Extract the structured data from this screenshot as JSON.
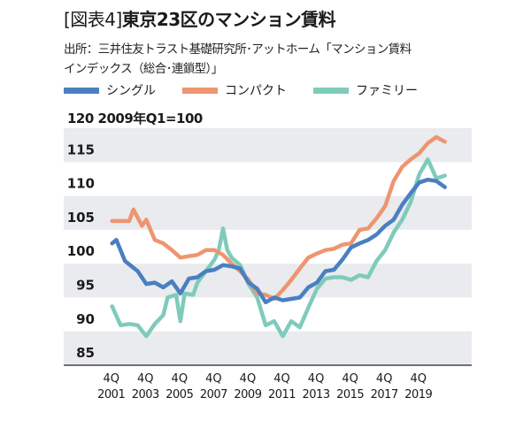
{
  "chart_data": {
    "type": "line",
    "title_prefix": "[図表4]",
    "title": "東京23区のマンション賃料",
    "source_line1": "出所：三井住友トラスト基礎研究所･アットホーム「マンション賃料",
    "source_line2": "インデックス（総合･連鎖型）」",
    "unit_label": "120 2009年Q1=100",
    "ylim": [
      83.7,
      118.7
    ],
    "yticks": [
      "85",
      "90",
      "95",
      "100",
      "105",
      "110",
      "115"
    ],
    "ytick_values": [
      85,
      90,
      95,
      100,
      105,
      110,
      115
    ],
    "bands": [
      [
        83.7,
        88.7
      ],
      [
        93.7,
        98.7
      ],
      [
        103.7,
        108.7
      ],
      [
        113.7,
        118.7
      ]
    ],
    "band_color": "#e9ebee",
    "xticks": [
      {
        "q": "4Q",
        "y": "2001"
      },
      {
        "q": "4Q",
        "y": "2003"
      },
      {
        "q": "4Q",
        "y": "2005"
      },
      {
        "q": "4Q",
        "y": "2007"
      },
      {
        "q": "4Q",
        "y": "2009"
      },
      {
        "q": "4Q",
        "y": "2011"
      },
      {
        "q": "4Q",
        "y": "2013"
      },
      {
        "q": "4Q",
        "y": "2015"
      },
      {
        "q": "4Q",
        "y": "2017"
      },
      {
        "q": "4Q",
        "y": "2019"
      }
    ],
    "xtick_positions": [
      "2001Q4",
      "2003Q4",
      "2005Q4",
      "2007Q4",
      "2009Q4",
      "2011Q4",
      "2013Q4",
      "2015Q4",
      "2017Q4",
      "2019Q4"
    ],
    "xlim": [
      "2001Q4",
      "2021Q2"
    ],
    "legend_placement": "top",
    "series": [
      {
        "name": "シングル",
        "color": "#4a7fc1",
        "points": [
          [
            "2001Q4",
            101.7
          ],
          [
            "2002Q1",
            102.2
          ],
          [
            "2002Q3",
            99.1
          ],
          [
            "2003Q2",
            97.6
          ],
          [
            "2003Q4",
            95.7
          ],
          [
            "2004Q2",
            95.9
          ],
          [
            "2004Q4",
            95.2
          ],
          [
            "2005Q2",
            96.1
          ],
          [
            "2005Q4",
            94.3
          ],
          [
            "2006Q2",
            96.5
          ],
          [
            "2006Q4",
            96.7
          ],
          [
            "2007Q2",
            97.6
          ],
          [
            "2007Q4",
            97.8
          ],
          [
            "2008Q2",
            98.5
          ],
          [
            "2008Q4",
            98.3
          ],
          [
            "2009Q2",
            98.0
          ],
          [
            "2009Q4",
            95.9
          ],
          [
            "2010Q2",
            95.0
          ],
          [
            "2010Q4",
            93.0
          ],
          [
            "2011Q2",
            93.7
          ],
          [
            "2011Q4",
            93.3
          ],
          [
            "2012Q2",
            93.5
          ],
          [
            "2012Q4",
            93.7
          ],
          [
            "2013Q2",
            95.2
          ],
          [
            "2013Q4",
            95.9
          ],
          [
            "2014Q2",
            97.6
          ],
          [
            "2014Q4",
            97.8
          ],
          [
            "2015Q2",
            99.3
          ],
          [
            "2015Q4",
            101.1
          ],
          [
            "2016Q2",
            101.7
          ],
          [
            "2016Q4",
            102.2
          ],
          [
            "2017Q2",
            103.0
          ],
          [
            "2017Q4",
            104.3
          ],
          [
            "2018Q2",
            105.2
          ],
          [
            "2018Q4",
            107.4
          ],
          [
            "2019Q2",
            109.1
          ],
          [
            "2019Q4",
            110.7
          ],
          [
            "2020Q2",
            111.1
          ],
          [
            "2020Q4",
            110.9
          ],
          [
            "2021Q2",
            110.0
          ]
        ]
      },
      {
        "name": "コンパクト",
        "color": "#ee9570",
        "points": [
          [
            "2001Q4",
            105.0
          ],
          [
            "2002Q4",
            105.0
          ],
          [
            "2003Q1",
            106.7
          ],
          [
            "2003Q3",
            104.3
          ],
          [
            "2003Q4",
            105.2
          ],
          [
            "2004Q2",
            102.2
          ],
          [
            "2004Q4",
            101.7
          ],
          [
            "2005Q2",
            100.7
          ],
          [
            "2005Q4",
            99.6
          ],
          [
            "2006Q2",
            99.8
          ],
          [
            "2006Q4",
            100.0
          ],
          [
            "2007Q2",
            100.7
          ],
          [
            "2007Q4",
            100.7
          ],
          [
            "2008Q2",
            100.0
          ],
          [
            "2008Q4",
            98.7
          ],
          [
            "2009Q2",
            97.6
          ],
          [
            "2009Q4",
            96.3
          ],
          [
            "2010Q2",
            94.3
          ],
          [
            "2010Q4",
            94.1
          ],
          [
            "2011Q2",
            93.5
          ],
          [
            "2011Q4",
            94.8
          ],
          [
            "2012Q2",
            96.3
          ],
          [
            "2012Q4",
            98.0
          ],
          [
            "2013Q2",
            99.6
          ],
          [
            "2013Q4",
            100.2
          ],
          [
            "2014Q2",
            100.7
          ],
          [
            "2014Q4",
            100.9
          ],
          [
            "2015Q2",
            101.5
          ],
          [
            "2015Q4",
            101.7
          ],
          [
            "2016Q2",
            103.7
          ],
          [
            "2016Q4",
            103.9
          ],
          [
            "2017Q2",
            105.4
          ],
          [
            "2017Q4",
            107.2
          ],
          [
            "2018Q2",
            110.9
          ],
          [
            "2018Q4",
            113.0
          ],
          [
            "2019Q2",
            114.1
          ],
          [
            "2019Q4",
            115.0
          ],
          [
            "2020Q2",
            116.5
          ],
          [
            "2020Q4",
            117.4
          ],
          [
            "2021Q2",
            116.7
          ]
        ]
      },
      {
        "name": "ファミリー",
        "color": "#7fcbbb",
        "points": [
          [
            "2001Q4",
            92.4
          ],
          [
            "2002Q2",
            89.6
          ],
          [
            "2002Q4",
            89.8
          ],
          [
            "2003Q2",
            89.6
          ],
          [
            "2003Q4",
            88.0
          ],
          [
            "2004Q2",
            89.8
          ],
          [
            "2004Q4",
            91.1
          ],
          [
            "2005Q1",
            93.7
          ],
          [
            "2005Q3",
            94.1
          ],
          [
            "2005Q4",
            90.2
          ],
          [
            "2006Q1",
            94.3
          ],
          [
            "2006Q3",
            94.1
          ],
          [
            "2006Q4",
            95.9
          ],
          [
            "2007Q2",
            97.6
          ],
          [
            "2007Q4",
            99.3
          ],
          [
            "2008Q1",
            100.7
          ],
          [
            "2008Q2",
            103.9
          ],
          [
            "2008Q3",
            100.7
          ],
          [
            "2008Q4",
            99.6
          ],
          [
            "2009Q2",
            98.5
          ],
          [
            "2009Q4",
            95.7
          ],
          [
            "2010Q2",
            93.7
          ],
          [
            "2010Q4",
            89.6
          ],
          [
            "2011Q2",
            90.2
          ],
          [
            "2011Q4",
            88.0
          ],
          [
            "2012Q2",
            90.2
          ],
          [
            "2012Q4",
            89.3
          ],
          [
            "2013Q2",
            92.2
          ],
          [
            "2013Q4",
            95.0
          ],
          [
            "2014Q2",
            96.5
          ],
          [
            "2014Q4",
            96.7
          ],
          [
            "2015Q2",
            96.7
          ],
          [
            "2015Q4",
            96.3
          ],
          [
            "2016Q2",
            97.0
          ],
          [
            "2016Q4",
            96.7
          ],
          [
            "2017Q2",
            99.1
          ],
          [
            "2017Q4",
            100.7
          ],
          [
            "2018Q2",
            103.3
          ],
          [
            "2018Q4",
            105.2
          ],
          [
            "2019Q2",
            107.8
          ],
          [
            "2019Q4",
            111.9
          ],
          [
            "2020Q2",
            114.1
          ],
          [
            "2020Q4",
            111.3
          ],
          [
            "2021Q2",
            111.7
          ]
        ]
      }
    ]
  }
}
